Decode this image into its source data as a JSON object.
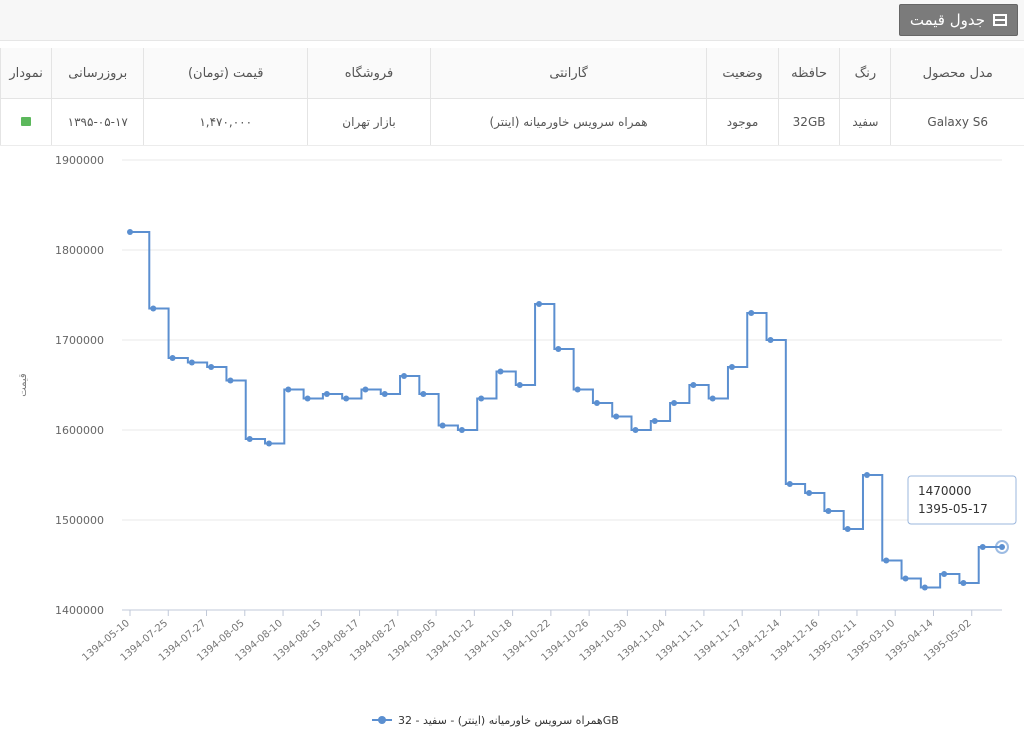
{
  "header": {
    "title": "جدول قیمت",
    "icon": "table-icon"
  },
  "table": {
    "headers": {
      "model": "مدل محصول",
      "color": "رنگ",
      "memory": "حافظه",
      "status": "وضعیت",
      "warranty": "گارانتی",
      "store": "فروشگاه",
      "price": "قیمت (تومان)",
      "updated": "بروزرسانی",
      "chart": "نمودار"
    },
    "row": {
      "model": "Galaxy S6",
      "color": "سفید",
      "memory": "32GB",
      "status": "موجود",
      "warranty": "همراه سرویس خاورمیانه (اینتر)",
      "store": "بازار تهران",
      "price": "۱,۴۷۰,۰۰۰",
      "updated": "۱۳۹۵-۰۵-۱۷"
    }
  },
  "chart_data": {
    "type": "line",
    "step": true,
    "title": "",
    "xlabel": "",
    "ylabel": "قیمت",
    "ylim": [
      1400000,
      1900000
    ],
    "yticks": [
      1400000,
      1500000,
      1600000,
      1700000,
      1800000,
      1900000
    ],
    "xtick_labels": [
      "1394-05-10",
      "1394-07-25",
      "1394-07-27",
      "1394-08-05",
      "1394-08-10",
      "1394-08-15",
      "1394-08-17",
      "1394-08-27",
      "1394-09-05",
      "1394-10-12",
      "1394-10-18",
      "1394-10-22",
      "1394-10-26",
      "1394-10-30",
      "1394-11-04",
      "1394-11-11",
      "1394-11-17",
      "1394-12-14",
      "1394-12-16",
      "1395-02-11",
      "1395-03-10",
      "1395-04-14",
      "1395-05-02"
    ],
    "grid": true,
    "legend_position": "bottom",
    "color": "#5b8fd0",
    "series": [
      {
        "name": "همراه سرویس خاورمیانه (اینتر) - سفید - 32GB",
        "values": [
          1820000,
          1735000,
          1680000,
          1675000,
          1670000,
          1655000,
          1590000,
          1585000,
          1645000,
          1635000,
          1640000,
          1635000,
          1645000,
          1640000,
          1660000,
          1640000,
          1605000,
          1600000,
          1635000,
          1665000,
          1650000,
          1740000,
          1690000,
          1645000,
          1630000,
          1615000,
          1600000,
          1610000,
          1630000,
          1650000,
          1635000,
          1670000,
          1730000,
          1700000,
          1540000,
          1530000,
          1510000,
          1490000,
          1550000,
          1455000,
          1435000,
          1425000,
          1440000,
          1430000,
          1470000,
          1470000
        ]
      }
    ],
    "tooltip": {
      "value": "1470000",
      "date": "1395-05-17"
    }
  }
}
